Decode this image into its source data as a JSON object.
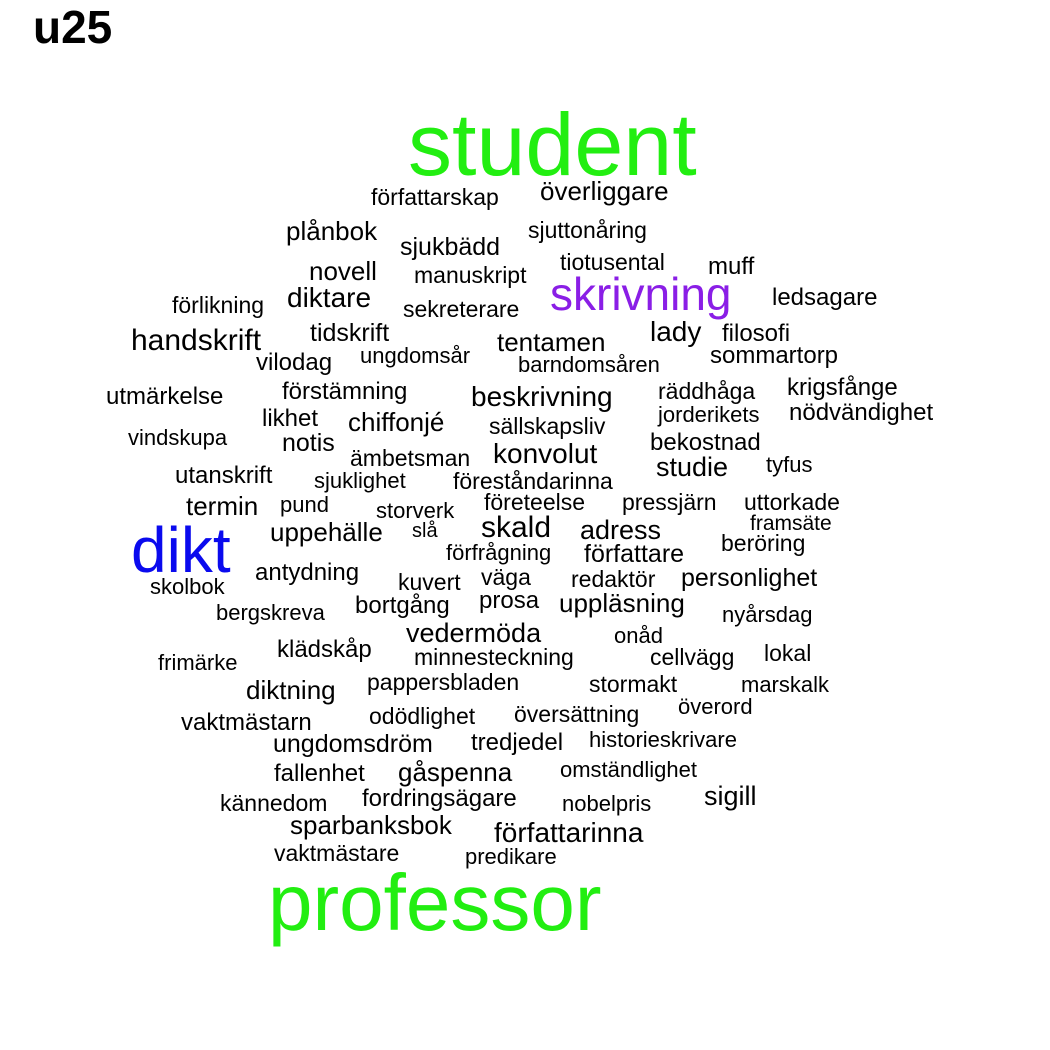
{
  "title": "u25",
  "colors": {
    "green": "#22ee11",
    "purple": "#8a1ee6",
    "blue": "#0a0aee",
    "black": "#000000"
  },
  "words": [
    {
      "text": "student",
      "weight": 7,
      "color": "green"
    },
    {
      "text": "professor",
      "weight": 6.5,
      "color": "green"
    },
    {
      "text": "dikt",
      "weight": 5,
      "color": "blue"
    },
    {
      "text": "skrivning",
      "weight": 4,
      "color": "purple"
    },
    {
      "text": "författarskap",
      "weight": 1.2
    },
    {
      "text": "överliggare",
      "weight": 1.4
    },
    {
      "text": "plånbok",
      "weight": 1.4
    },
    {
      "text": "sjukbädd",
      "weight": 1.3
    },
    {
      "text": "sjuttonåring",
      "weight": 1.2
    },
    {
      "text": "novell",
      "weight": 1.4
    },
    {
      "text": "manuskript",
      "weight": 1.2
    },
    {
      "text": "tiotusental",
      "weight": 1.2
    },
    {
      "text": "muff",
      "weight": 1.3
    },
    {
      "text": "förlikning",
      "weight": 1.2
    },
    {
      "text": "diktare",
      "weight": 1.5
    },
    {
      "text": "sekreterare",
      "weight": 1.2
    },
    {
      "text": "ledsagare",
      "weight": 1.3
    },
    {
      "text": "handskrift",
      "weight": 1.6
    },
    {
      "text": "tidskrift",
      "weight": 1.3
    },
    {
      "text": "tentamen",
      "weight": 1.4
    },
    {
      "text": "lady",
      "weight": 1.5
    },
    {
      "text": "filosofi",
      "weight": 1.3
    },
    {
      "text": "vilodag",
      "weight": 1.3
    },
    {
      "text": "ungdomsår",
      "weight": 1.2
    },
    {
      "text": "barndomsåren",
      "weight": 1.2
    },
    {
      "text": "sommartorp",
      "weight": 1.3
    },
    {
      "text": "utmärkelse",
      "weight": 1.3
    },
    {
      "text": "förstämning",
      "weight": 1.3
    },
    {
      "text": "beskrivning",
      "weight": 1.5
    },
    {
      "text": "räddhåga",
      "weight": 1.2
    },
    {
      "text": "krigsfånge",
      "weight": 1.3
    },
    {
      "text": "likhet",
      "weight": 1.3
    },
    {
      "text": "chiffonjé",
      "weight": 1.4
    },
    {
      "text": "sällskapsliv",
      "weight": 1.2
    },
    {
      "text": "jorderikets",
      "weight": 1.2
    },
    {
      "text": "nödvändighet",
      "weight": 1.3
    },
    {
      "text": "vindskupa",
      "weight": 1.2
    },
    {
      "text": "notis",
      "weight": 1.3
    },
    {
      "text": "ämbetsman",
      "weight": 1.2
    },
    {
      "text": "konvolut",
      "weight": 1.5
    },
    {
      "text": "bekostnad",
      "weight": 1.3
    },
    {
      "text": "studie",
      "weight": 1.5
    },
    {
      "text": "tyfus",
      "weight": 1.2
    },
    {
      "text": "utanskrift",
      "weight": 1.3
    },
    {
      "text": "sjuklighet",
      "weight": 1.2
    },
    {
      "text": "föreståndarinna",
      "weight": 1.2
    },
    {
      "text": "termin",
      "weight": 1.4
    },
    {
      "text": "pund",
      "weight": 1.2
    },
    {
      "text": "storverk",
      "weight": 1.2
    },
    {
      "text": "företeelse",
      "weight": 1.2
    },
    {
      "text": "pressjärn",
      "weight": 1.2
    },
    {
      "text": "uttorkade",
      "weight": 1.2
    },
    {
      "text": "framsäte",
      "weight": 1.1
    },
    {
      "text": "uppehälle",
      "weight": 1.4
    },
    {
      "text": "slå",
      "weight": 1.1
    },
    {
      "text": "skald",
      "weight": 1.6
    },
    {
      "text": "adress",
      "weight": 1.4
    },
    {
      "text": "beröring",
      "weight": 1.3
    },
    {
      "text": "förfrågning",
      "weight": 1.2
    },
    {
      "text": "författare",
      "weight": 1.4
    },
    {
      "text": "antydning",
      "weight": 1.3
    },
    {
      "text": "väga",
      "weight": 1.2
    },
    {
      "text": "redaktör",
      "weight": 1.3
    },
    {
      "text": "personlighet",
      "weight": 1.4
    },
    {
      "text": "skolbok",
      "weight": 1.2
    },
    {
      "text": "kuvert",
      "weight": 1.3
    },
    {
      "text": "bergskreva",
      "weight": 1.2
    },
    {
      "text": "bortgång",
      "weight": 1.3
    },
    {
      "text": "prosa",
      "weight": 1.3
    },
    {
      "text": "uppläsning",
      "weight": 1.4
    },
    {
      "text": "nyårsdag",
      "weight": 1.2
    },
    {
      "text": "vedermöda",
      "weight": 1.5
    },
    {
      "text": "onåd",
      "weight": 1.2
    },
    {
      "text": "klädskåp",
      "weight": 1.2
    },
    {
      "text": "minnesteckning",
      "weight": 1.2
    },
    {
      "text": "cellvägg",
      "weight": 1.2
    },
    {
      "text": "lokal",
      "weight": 1.2
    },
    {
      "text": "frimärke",
      "weight": 1.2
    },
    {
      "text": "diktning",
      "weight": 1.4
    },
    {
      "text": "pappersbladen",
      "weight": 1.2
    },
    {
      "text": "stormakt",
      "weight": 1.2
    },
    {
      "text": "marskalk",
      "weight": 1.2
    },
    {
      "text": "överord",
      "weight": 1.2
    },
    {
      "text": "vaktmästarn",
      "weight": 1.3
    },
    {
      "text": "odödlighet",
      "weight": 1.2
    },
    {
      "text": "översättning",
      "weight": 1.2
    },
    {
      "text": "ungdomsdröm",
      "weight": 1.3
    },
    {
      "text": "tredjedel",
      "weight": 1.3
    },
    {
      "text": "historieskrivare",
      "weight": 1.2
    },
    {
      "text": "fallenhet",
      "weight": 1.3
    },
    {
      "text": "gåspenna",
      "weight": 1.4
    },
    {
      "text": "omständlighet",
      "weight": 1.2
    },
    {
      "text": "kännedom",
      "weight": 1.2
    },
    {
      "text": "fordringsägare",
      "weight": 1.3
    },
    {
      "text": "nobelpris",
      "weight": 1.2
    },
    {
      "text": "sigill",
      "weight": 1.4
    },
    {
      "text": "sparbanksbok",
      "weight": 1.4
    },
    {
      "text": "författarinna",
      "weight": 1.5
    },
    {
      "text": "vaktmästare",
      "weight": 1.3
    },
    {
      "text": "predikare",
      "weight": 1.2
    }
  ]
}
